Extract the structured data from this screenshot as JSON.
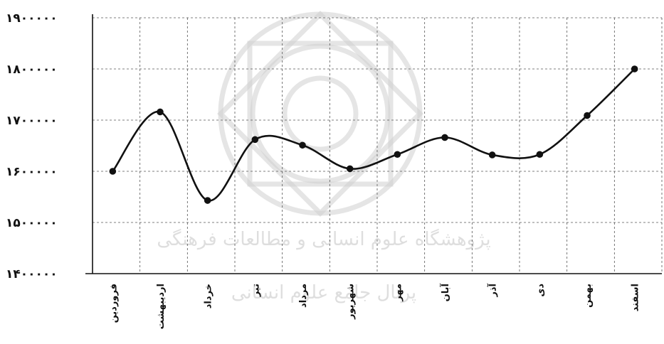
{
  "chart_data": {
    "type": "line",
    "categories": [
      "فروردین",
      "اردیبهشت",
      "خرداد",
      "تیر",
      "مرداد",
      "شهریور",
      "مهر",
      "آبان",
      "آذر",
      "دی",
      "بهمن",
      "اسفند"
    ],
    "values": [
      1600000,
      1716000,
      1543000,
      1662000,
      1651000,
      1605000,
      1633000,
      1666000,
      1632000,
      1633000,
      1709000,
      1800000
    ],
    "title": "",
    "xlabel": "",
    "ylabel": "",
    "ylim": [
      1400000,
      1900000
    ],
    "yticks": [
      1400000,
      1500000,
      1600000,
      1700000,
      1800000,
      1900000
    ],
    "ytick_labels": [
      "۱۴۰۰۰۰۰",
      "۱۵۰۰۰۰۰",
      "۱۶۰۰۰۰۰",
      "۱۷۰۰۰۰۰",
      "۱۸۰۰۰۰۰",
      "۱۹۰۰۰۰۰"
    ],
    "grid": true,
    "smooth": true,
    "line_color": "#111111"
  },
  "watermark": {
    "line1": "پژوهشگاه علوم انسانی و مطالعات فرهنگی",
    "line2": "پرتال جامع علوم انسانی"
  }
}
